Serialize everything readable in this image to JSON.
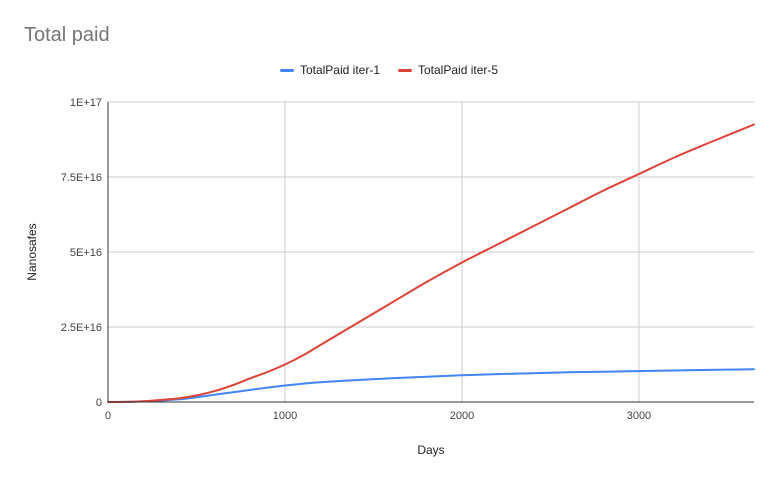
{
  "chart_data": {
    "type": "line",
    "title": "Total paid",
    "xlabel": "Days",
    "ylabel": "Nanosafes",
    "xlim": [
      0,
      3650
    ],
    "ylim": [
      0,
      100000000000000000
    ],
    "x_ticks": [
      0,
      1000,
      2000,
      3000
    ],
    "x_tick_labels": [
      "0",
      "1000",
      "2000",
      "3000"
    ],
    "y_ticks": [
      0,
      25000000000000000,
      50000000000000000,
      75000000000000000,
      100000000000000000
    ],
    "y_tick_labels": [
      "0",
      "2.5E+16",
      "5E+16",
      "7.5E+16",
      "1E+17"
    ],
    "grid": true,
    "legend_position": "top",
    "x": [
      0,
      100,
      200,
      300,
      400,
      500,
      600,
      700,
      800,
      900,
      1000,
      1100,
      1200,
      1400,
      1600,
      1800,
      2000,
      2200,
      2400,
      2600,
      2800,
      3000,
      3200,
      3400,
      3650
    ],
    "series": [
      {
        "name": "TotalPaid iter-1",
        "color": "#4285f4",
        "values": [
          0,
          50000000000000,
          200000000000000,
          500000000000000,
          900000000000000,
          1600000000000000,
          2400000000000000,
          3200000000000000,
          4000000000000000,
          4800000000000000,
          5500000000000000,
          6100000000000000,
          6600000000000000,
          7300000000000000,
          7900000000000000,
          8400000000000000,
          8900000000000000,
          9300000000000000,
          9600000000000000,
          9900000000000000,
          10100000000000000,
          10300000000000000,
          10500000000000000,
          10700000000000000,
          10900000000000000
        ]
      },
      {
        "name": "TotalPaid iter-5",
        "color": "#db4437",
        "values": [
          0,
          50000000000000,
          250000000000000,
          700000000000000,
          1200000000000000,
          2200000000000000,
          3600000000000000,
          5500000000000000,
          7800000000000000,
          10000000000000000,
          12500000000000000,
          15500000000000000,
          19000000000000000,
          26000000000000000,
          33000000000000000,
          40000000000000000,
          46500000000000000,
          52500000000000000,
          58500000000000000,
          64500000000000000,
          70500000000000000,
          76000000000000000,
          81500000000000000,
          86500000000000000,
          92500000000000000
        ]
      }
    ]
  }
}
